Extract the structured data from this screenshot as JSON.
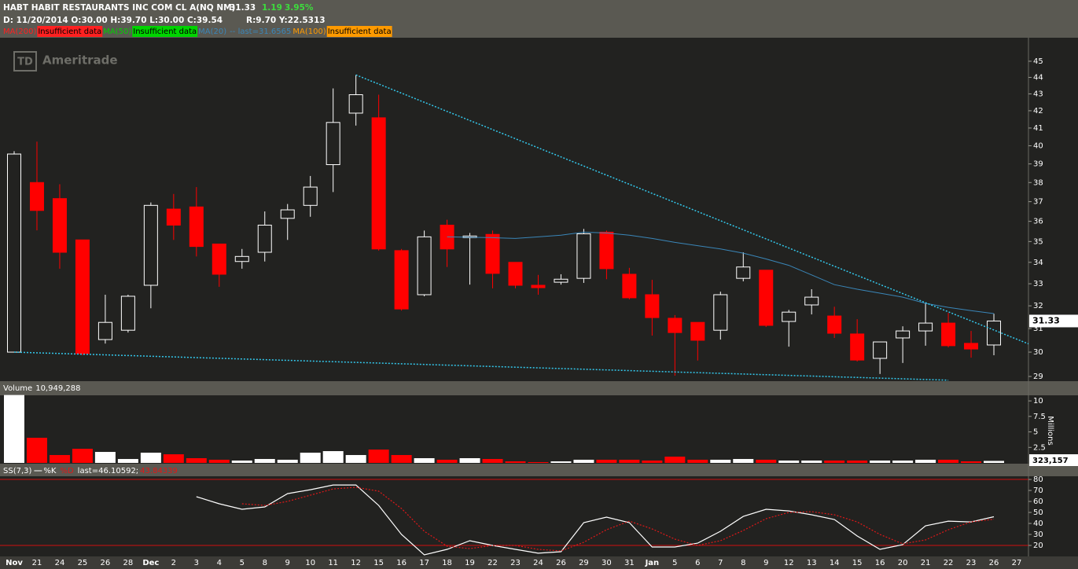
{
  "header": {
    "symbol_title": "HABT HABIT RESTAURANTS INC COM CL A(NQ NM)",
    "last": "31.33",
    "change": "1.19",
    "change_pct": "3.95%",
    "bar_info": "D: 11/20/2014 O:30.00 H:39.70 L:30.00 C:39.54",
    "range_info": "R:9.70  Y:22.5313",
    "logo_mark": "TD",
    "logo": "Ameritrade"
  },
  "chart_data": [
    {
      "type": "candlestick",
      "log_scale": true,
      "ylim": [
        28.81,
        46.5
      ],
      "yticks": [
        29,
        30,
        31,
        32,
        33,
        34,
        35,
        36,
        37,
        38,
        39,
        40,
        41,
        42,
        43,
        44,
        45
      ],
      "up_color": "#ffffff",
      "down_color": "#ff0000",
      "last_label": "31.33",
      "categories": [
        "Nov",
        "21",
        "24",
        "25",
        "26",
        "28",
        "Dec",
        "2",
        "3",
        "4",
        "5",
        "8",
        "9",
        "10",
        "11",
        "12",
        "15",
        "16",
        "17",
        "18",
        "19",
        "22",
        "23",
        "24",
        "26",
        "29",
        "30",
        "31",
        "Jan",
        "5",
        "6",
        "7",
        "8",
        "9",
        "12",
        "13",
        "14",
        "15",
        "16",
        "20",
        "21",
        "22",
        "23",
        "26",
        "27"
      ],
      "open": [
        30.0,
        38.0,
        37.16,
        35.08,
        30.53,
        30.93,
        32.93,
        36.62,
        36.73,
        34.88,
        34.04,
        34.48,
        36.15,
        36.81,
        38.96,
        41.86,
        41.59,
        34.56,
        32.5,
        35.81,
        35.19,
        35.35,
        34.0,
        32.93,
        33.07,
        33.25,
        35.46,
        33.44,
        32.5,
        31.45,
        31.27,
        30.93,
        33.25,
        33.63,
        31.31,
        32.04,
        31.55,
        30.77,
        29.74,
        30.6,
        30.9,
        31.24,
        30.37,
        30.3,
        null
      ],
      "high": [
        39.7,
        40.23,
        37.91,
        35.08,
        32.5,
        32.5,
        36.96,
        37.4,
        37.76,
        34.88,
        34.64,
        36.5,
        36.88,
        38.35,
        43.33,
        44.15,
        42.95,
        34.64,
        35.54,
        36.08,
        35.42,
        35.54,
        34.0,
        33.41,
        33.44,
        35.62,
        35.54,
        33.74,
        33.18,
        31.59,
        31.27,
        32.64,
        34.48,
        33.63,
        31.82,
        32.75,
        31.96,
        31.41,
        30.43,
        31.1,
        32.14,
        31.69,
        30.9,
        31.65,
        null
      ],
      "low": [
        30.0,
        35.55,
        33.7,
        29.87,
        30.36,
        30.83,
        31.89,
        35.08,
        34.28,
        32.86,
        33.7,
        34.04,
        35.08,
        36.23,
        37.5,
        41.14,
        34.56,
        31.79,
        32.43,
        33.78,
        32.96,
        32.79,
        32.79,
        32.5,
        32.96,
        33.04,
        33.21,
        32.29,
        30.7,
        29.03,
        29.65,
        30.53,
        33.11,
        31.07,
        30.23,
        31.62,
        30.6,
        29.61,
        29.1,
        29.55,
        30.27,
        30.2,
        29.77,
        29.87,
        null
      ],
      "close": [
        39.54,
        36.55,
        34.48,
        29.94,
        31.27,
        32.43,
        36.81,
        35.81,
        34.76,
        33.44,
        34.28,
        35.81,
        36.58,
        37.76,
        41.32,
        42.95,
        34.64,
        31.86,
        35.23,
        34.64,
        35.27,
        33.48,
        32.93,
        32.82,
        33.21,
        35.38,
        33.7,
        32.36,
        31.48,
        30.83,
        30.5,
        32.5,
        33.78,
        31.14,
        31.72,
        32.39,
        30.8,
        29.67,
        30.43,
        30.9,
        31.24,
        30.27,
        30.13,
        31.33,
        null
      ],
      "studies": [
        {
          "name": "MA(200)",
          "color": "#ff2020",
          "note": "Insufficient data",
          "note_style": "box"
        },
        {
          "name": "MA(50)",
          "color": "#00d400",
          "note": "Insufficient data",
          "note_style": "box"
        },
        {
          "name": "MA(20)",
          "color": "#3a86b8",
          "note": "-- last=31.6565",
          "note_style": "text",
          "values": [
            null,
            null,
            null,
            null,
            null,
            null,
            null,
            null,
            null,
            null,
            null,
            null,
            null,
            null,
            null,
            null,
            null,
            null,
            null,
            35.23,
            35.21,
            35.19,
            35.15,
            35.23,
            35.31,
            35.46,
            35.42,
            35.31,
            35.15,
            34.96,
            34.8,
            34.64,
            34.44,
            34.16,
            33.86,
            33.41,
            32.96,
            32.75,
            32.57,
            32.39,
            32.11,
            31.93,
            31.79,
            31.6565,
            null
          ]
        },
        {
          "name": "MA(100)",
          "color": "#ff9a00",
          "note": "Insufficient data",
          "note_style": "box"
        }
      ],
      "trendlines": [
        {
          "color": "#33c8ec",
          "extend": true,
          "points": [
            [
              15,
              44.15
            ],
            [
              40,
              32.14
            ]
          ]
        },
        {
          "color": "#33c8ec",
          "extend": false,
          "points": [
            [
              0,
              30.0
            ],
            [
              41,
              28.85
            ]
          ]
        }
      ]
    },
    {
      "type": "bar",
      "title": "Volume",
      "title_value": "10,949,288",
      "y_label": "Millions",
      "last_label": "323,157",
      "ylim": [
        0,
        10.9
      ],
      "yticks": [
        2.5,
        5,
        7.5,
        10
      ],
      "values": [
        10.949288,
        4.05,
        1.27,
        2.28,
        1.77,
        0.63,
        1.65,
        1.39,
        0.76,
        0.51,
        0.38,
        0.63,
        0.51,
        1.65,
        1.9,
        1.27,
        2.15,
        1.27,
        0.76,
        0.51,
        0.76,
        0.63,
        0.25,
        0.13,
        0.25,
        0.51,
        0.51,
        0.51,
        0.38,
        1.01,
        0.51,
        0.51,
        0.63,
        0.51,
        0.38,
        0.38,
        0.38,
        0.38,
        0.38,
        0.38,
        0.51,
        0.51,
        0.25,
        0.323157,
        null
      ]
    },
    {
      "type": "line",
      "title": "SS(7,3)",
      "ylim": [
        10,
        82.9
      ],
      "yticks": [
        20,
        30,
        40,
        50,
        60,
        70,
        80
      ],
      "levels": [
        80,
        20
      ],
      "level_color": "#d01010",
      "series": [
        {
          "name": "%K",
          "color": "#ffffff",
          "dash": false,
          "last_label": "last=46.10592;",
          "values": [
            null,
            null,
            null,
            null,
            null,
            null,
            null,
            null,
            64.3,
            57.9,
            52.9,
            55.0,
            67.1,
            70.7,
            75.0,
            75.0,
            56.4,
            30.0,
            11.4,
            16.4,
            24.3,
            20.0,
            16.4,
            12.9,
            14.3,
            40.7,
            45.7,
            40.7,
            18.6,
            18.6,
            22.1,
            32.9,
            46.4,
            52.9,
            51.4,
            47.9,
            43.6,
            28.6,
            16.4,
            20.7,
            37.9,
            42.1,
            41.4,
            46.10592,
            null
          ]
        },
        {
          "name": "%D",
          "color": "#e01818",
          "dash": true,
          "last_label": "43.84339",
          "values": [
            null,
            null,
            null,
            null,
            null,
            null,
            null,
            null,
            null,
            null,
            57.9,
            56.4,
            60.0,
            65.7,
            71.4,
            72.9,
            69.3,
            53.6,
            32.9,
            19.3,
            17.1,
            20.0,
            20.0,
            16.4,
            15.0,
            22.9,
            34.3,
            42.1,
            35.0,
            25.7,
            20.0,
            24.3,
            33.6,
            44.3,
            50.0,
            50.7,
            47.9,
            41.4,
            30.0,
            21.4,
            25.0,
            34.3,
            41.4,
            43.84339,
            null
          ]
        }
      ]
    }
  ]
}
